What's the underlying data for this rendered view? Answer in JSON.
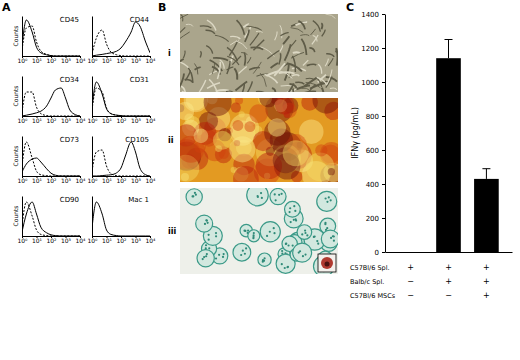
{
  "panel_labels": [
    "A",
    "B",
    "C"
  ],
  "images": [
    {
      "label": "i"
    },
    {
      "label": "ii"
    },
    {
      "label": "iii"
    }
  ],
  "chart_data": [
    {
      "type": "line",
      "title": "CD45",
      "ylabel": "Counts",
      "x": [
        1,
        2,
        5,
        10,
        20,
        50,
        100,
        200,
        500,
        1000,
        2000,
        5000,
        10000
      ],
      "series": [
        {
          "line_style": "dashed",
          "color": "#000000",
          "values": [
            15,
            70,
            75,
            35,
            12,
            4,
            1,
            0,
            0,
            0,
            0,
            0,
            0
          ]
        },
        {
          "line_style": "solid",
          "color": "#000000",
          "values": [
            25,
            90,
            60,
            22,
            8,
            3,
            1,
            0,
            0,
            0,
            0,
            0,
            0
          ]
        }
      ],
      "log": "x",
      "xlim": [
        1,
        10000
      ],
      "xticks": [
        {
          "value": 1,
          "label": "10⁰"
        },
        {
          "value": 10,
          "label": "10¹"
        },
        {
          "value": 100,
          "label": "10²"
        },
        {
          "value": 1000,
          "label": "10³"
        },
        {
          "value": 10000,
          "label": "10⁴"
        }
      ],
      "ylim": [
        0,
        100
      ],
      "tick_labels": "x"
    },
    {
      "type": "line",
      "title": "CD44",
      "x": [
        1,
        2,
        5,
        10,
        20,
        50,
        100,
        200,
        500,
        1000,
        2000,
        5000,
        10000
      ],
      "series": [
        {
          "line_style": "dashed",
          "color": "#000000",
          "values": [
            5,
            45,
            65,
            30,
            10,
            3,
            1,
            0,
            0,
            0,
            0,
            0,
            0
          ]
        },
        {
          "line_style": "solid",
          "color": "#000000",
          "values": [
            0,
            2,
            4,
            6,
            8,
            12,
            20,
            35,
            60,
            85,
            75,
            35,
            8
          ]
        }
      ],
      "log": "x",
      "xlim": [
        1,
        10000
      ],
      "xticks": [
        {
          "value": 1,
          "label": "10⁰"
        },
        {
          "value": 10,
          "label": "10¹"
        },
        {
          "value": 100,
          "label": "10²"
        },
        {
          "value": 1000,
          "label": "10³"
        },
        {
          "value": 10000,
          "label": "10⁴"
        }
      ],
      "ylim": [
        0,
        100
      ],
      "tick_labels": "x"
    },
    {
      "type": "line",
      "title": "CD34",
      "ylabel": "Counts",
      "x": [
        1,
        2,
        5,
        10,
        20,
        50,
        100,
        200,
        500,
        1000,
        2000,
        5000,
        10000
      ],
      "series": [
        {
          "line_style": "dashed",
          "color": "#000000",
          "values": [
            10,
            60,
            60,
            22,
            6,
            1,
            0,
            0,
            0,
            0,
            0,
            0,
            0
          ]
        },
        {
          "line_style": "solid",
          "color": "#000000",
          "values": [
            0,
            2,
            5,
            8,
            12,
            25,
            45,
            65,
            70,
            45,
            15,
            3,
            0
          ]
        }
      ],
      "log": "x",
      "xlim": [
        1,
        10000
      ],
      "xticks": [
        {
          "value": 1,
          "label": "10⁰"
        },
        {
          "value": 10,
          "label": "10¹"
        },
        {
          "value": 100,
          "label": "10²"
        },
        {
          "value": 1000,
          "label": "10³"
        },
        {
          "value": 10000,
          "label": "10⁴"
        }
      ],
      "ylim": [
        0,
        100
      ],
      "tick_labels": "x"
    },
    {
      "type": "line",
      "title": "CD31",
      "x": [
        1,
        2,
        5,
        10,
        20,
        50,
        100,
        200,
        500,
        1000,
        2000,
        5000,
        10000
      ],
      "series": [
        {
          "line_style": "dashed",
          "color": "#000000",
          "values": [
            15,
            70,
            60,
            20,
            6,
            2,
            0,
            0,
            0,
            0,
            0,
            0,
            0
          ]
        },
        {
          "line_style": "solid",
          "color": "#000000",
          "values": [
            20,
            85,
            55,
            18,
            6,
            2,
            1,
            0,
            0,
            0,
            0,
            0,
            0
          ]
        }
      ],
      "log": "x",
      "xlim": [
        1,
        10000
      ],
      "xticks": [
        {
          "value": 1,
          "label": "10⁰"
        },
        {
          "value": 10,
          "label": "10¹"
        },
        {
          "value": 100,
          "label": "10²"
        },
        {
          "value": 1000,
          "label": "10³"
        },
        {
          "value": 10000,
          "label": "10⁴"
        }
      ],
      "ylim": [
        0,
        100
      ],
      "tick_labels": "x"
    },
    {
      "type": "line",
      "title": "CD73",
      "ylabel": "Counts",
      "x": [
        1,
        2,
        5,
        10,
        20,
        50,
        100,
        200,
        500,
        1000,
        2000,
        5000,
        10000
      ],
      "series": [
        {
          "line_style": "dashed",
          "color": "#000000",
          "values": [
            25,
            85,
            45,
            12,
            3,
            1,
            0,
            0,
            0,
            0,
            0,
            0,
            0
          ]
        },
        {
          "line_style": "solid",
          "color": "#000000",
          "values": [
            10,
            30,
            42,
            45,
            35,
            18,
            7,
            2,
            0,
            0,
            0,
            0,
            0
          ]
        }
      ],
      "log": "x",
      "xlim": [
        1,
        10000
      ],
      "xticks": [
        {
          "value": 1,
          "label": "10⁰"
        },
        {
          "value": 10,
          "label": "10¹"
        },
        {
          "value": 100,
          "label": "10²"
        },
        {
          "value": 1000,
          "label": "10³"
        },
        {
          "value": 10000,
          "label": "10⁴"
        }
      ],
      "ylim": [
        0,
        100
      ],
      "tick_labels": "x"
    },
    {
      "type": "line",
      "title": "CD105",
      "x": [
        1,
        2,
        5,
        10,
        20,
        50,
        100,
        200,
        500,
        1000,
        2000,
        5000,
        10000
      ],
      "series": [
        {
          "line_style": "dashed",
          "color": "#000000",
          "values": [
            12,
            60,
            65,
            25,
            6,
            1,
            0,
            0,
            0,
            0,
            0,
            0,
            0
          ]
        },
        {
          "line_style": "solid",
          "color": "#000000",
          "values": [
            0,
            0,
            1,
            2,
            3,
            8,
            20,
            50,
            85,
            60,
            20,
            3,
            0
          ]
        }
      ],
      "log": "x",
      "xlim": [
        1,
        10000
      ],
      "xticks": [
        {
          "value": 1,
          "label": "10⁰"
        },
        {
          "value": 10,
          "label": "10¹"
        },
        {
          "value": 100,
          "label": "10²"
        },
        {
          "value": 1000,
          "label": "10³"
        },
        {
          "value": 10000,
          "label": "10⁴"
        }
      ],
      "ylim": [
        0,
        100
      ],
      "tick_labels": "x"
    },
    {
      "type": "line",
      "title": "CD90",
      "ylabel": "Counts",
      "x": [
        1,
        2,
        5,
        10,
        20,
        50,
        100,
        200,
        500,
        1000,
        2000,
        5000,
        10000
      ],
      "series": [
        {
          "line_style": "dashed",
          "color": "#000000",
          "values": [
            25,
            85,
            50,
            15,
            4,
            1,
            0,
            0,
            0,
            0,
            0,
            0,
            0
          ]
        },
        {
          "line_style": "solid",
          "color": "#000000",
          "values": [
            10,
            55,
            85,
            55,
            22,
            8,
            3,
            1,
            0,
            0,
            0,
            0,
            0
          ]
        }
      ],
      "log": "x",
      "xlim": [
        1,
        10000
      ],
      "xticks": [
        {
          "value": 1,
          "label": "10⁰"
        },
        {
          "value": 10,
          "label": "10¹"
        },
        {
          "value": 100,
          "label": "10²"
        },
        {
          "value": 1000,
          "label": "10³"
        },
        {
          "value": 10000,
          "label": "10⁴"
        }
      ],
      "ylim": [
        0,
        100
      ],
      "tick_labels": "x"
    },
    {
      "type": "line",
      "title": "Mac 1",
      "x": [
        1,
        2,
        5,
        10,
        20,
        50,
        100,
        200,
        500,
        1000,
        2000,
        5000,
        10000
      ],
      "series": [
        {
          "line_style": "solid",
          "color": "#000000",
          "values": [
            20,
            85,
            55,
            15,
            4,
            1,
            0,
            0,
            0,
            0,
            0,
            0,
            0
          ]
        }
      ],
      "log": "x",
      "xlim": [
        1,
        10000
      ],
      "xticks": [
        {
          "value": 1,
          "label": "10⁰"
        },
        {
          "value": 10,
          "label": "10¹"
        },
        {
          "value": 100,
          "label": "10²"
        },
        {
          "value": 1000,
          "label": "10³"
        },
        {
          "value": 10000,
          "label": "10⁴"
        }
      ],
      "ylim": [
        0,
        100
      ],
      "tick_labels": "x"
    },
    {
      "type": "bar",
      "ylabel": "IFNγ (pg/mL)",
      "categories": [
        null,
        null,
        null
      ],
      "values": [
        0,
        1140,
        430
      ],
      "errors": [
        0,
        110,
        60
      ],
      "color": "#000000",
      "ylim": [
        0,
        1400
      ],
      "yticks": [
        0,
        200,
        400,
        600,
        800,
        1000,
        1200,
        1400
      ]
    }
  ],
  "table": {
    "rows": [
      {
        "label": "C57Bl/6 Spl.",
        "cells": [
          "+",
          "+",
          "+"
        ]
      },
      {
        "label": "Balb/c Spl.",
        "cells": [
          "−",
          "+",
          "+"
        ]
      },
      {
        "label": "C57Bl/6 MSCs",
        "cells": [
          "−",
          "−",
          "+"
        ]
      }
    ]
  }
}
